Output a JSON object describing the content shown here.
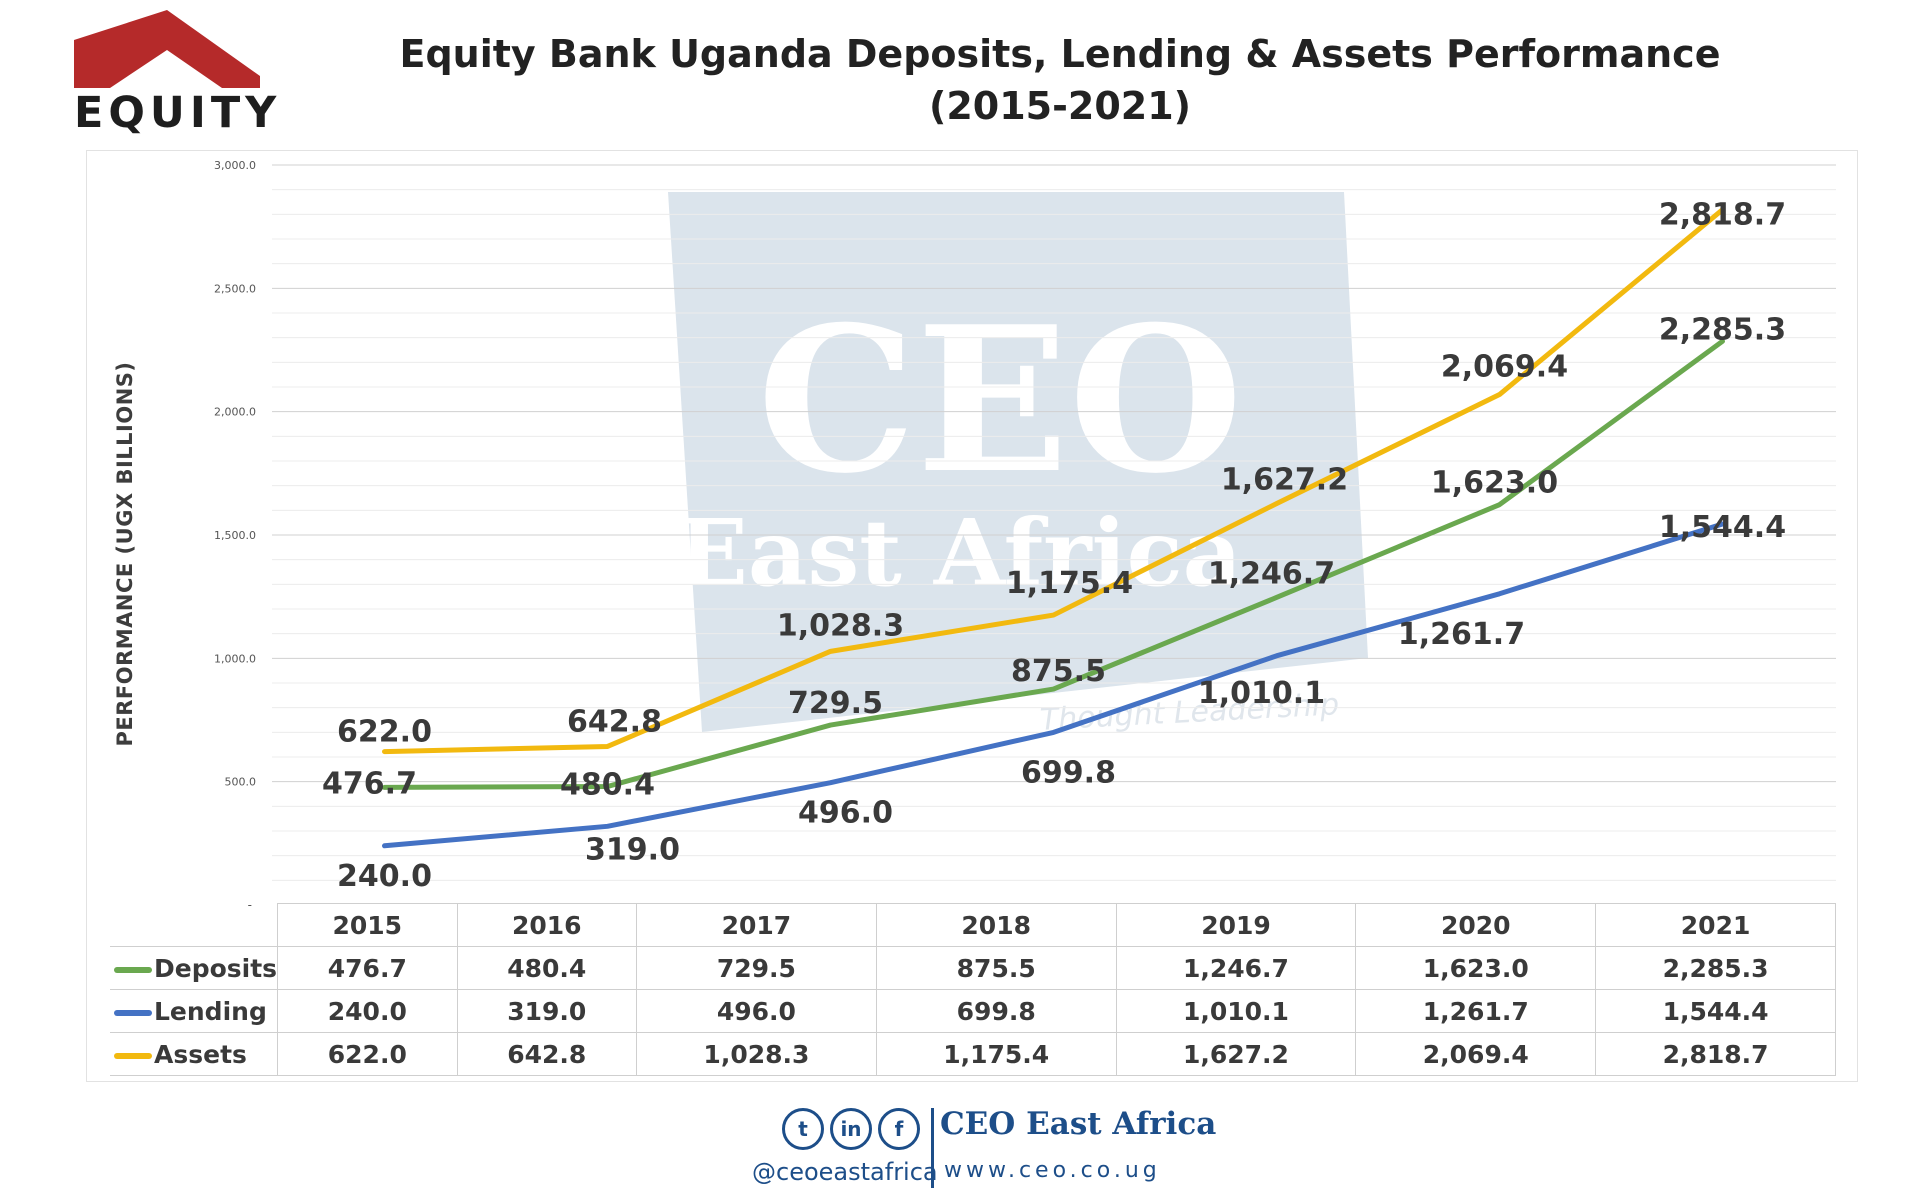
{
  "logo": {
    "text": "EQUITY",
    "roof_color": "#b52a2a"
  },
  "title": {
    "line1": "Equity Bank Uganda Deposits, Lending & Assets Performance",
    "line2": "(2015-2021)"
  },
  "watermark": {
    "text1": "CEO",
    "text2": "East Africa",
    "text3": "Thought Leadership"
  },
  "chart_data": {
    "type": "line",
    "title": "Equity Bank Uganda Deposits, Lending & Assets Performance (2015-2021)",
    "ylabel": "PERFORMANCE (UGX BILLIONS)",
    "xlabel": "",
    "ylim": [
      0,
      3000
    ],
    "yticks": [
      {
        "value": 500,
        "label": "500.0"
      },
      {
        "value": 1000,
        "label": "1,000.0"
      },
      {
        "value": 1500,
        "label": "1,500.0"
      },
      {
        "value": 2000,
        "label": "2,000.0"
      },
      {
        "value": 2500,
        "label": "2,500.0"
      },
      {
        "value": 3000,
        "label": "3,000.0"
      }
    ],
    "zero_label": "-",
    "categories": [
      "2015",
      "2016",
      "2017",
      "2018",
      "2019",
      "2020",
      "2021"
    ],
    "series": [
      {
        "name": "Deposits",
        "color": "#6aa84f",
        "values": [
          476.7,
          480.4,
          729.5,
          875.5,
          1246.7,
          1623.0,
          2285.3
        ],
        "labels": [
          "476.7",
          "480.4",
          "729.5",
          "875.5",
          "1,246.7",
          "1,623.0",
          "2,285.3"
        ]
      },
      {
        "name": "Lending",
        "color": "#4472c4",
        "values": [
          240.0,
          319.0,
          496.0,
          699.8,
          1010.1,
          1261.7,
          1544.4
        ],
        "labels": [
          "240.0",
          "319.0",
          "496.0",
          "699.8",
          "1,010.1",
          "1,261.7",
          "1,544.4"
        ]
      },
      {
        "name": "Assets",
        "color": "#f2b90f",
        "values": [
          622.0,
          642.8,
          1028.3,
          1175.4,
          1627.2,
          2069.4,
          2818.7
        ],
        "labels": [
          "622.0",
          "642.8",
          "1,028.3",
          "1,175.4",
          "1,627.2",
          "2,069.4",
          "2,818.7"
        ]
      }
    ],
    "legend": "data table below chart",
    "grid": true
  },
  "footer": {
    "social_icons": [
      "twitter-icon",
      "linkedin-icon",
      "facebook-icon"
    ],
    "social_glyphs": [
      "t",
      "in",
      "f"
    ],
    "handle": "@ceoeastafrica",
    "brand": "CEO East Africa",
    "website": "www.ceo.co.ug"
  }
}
